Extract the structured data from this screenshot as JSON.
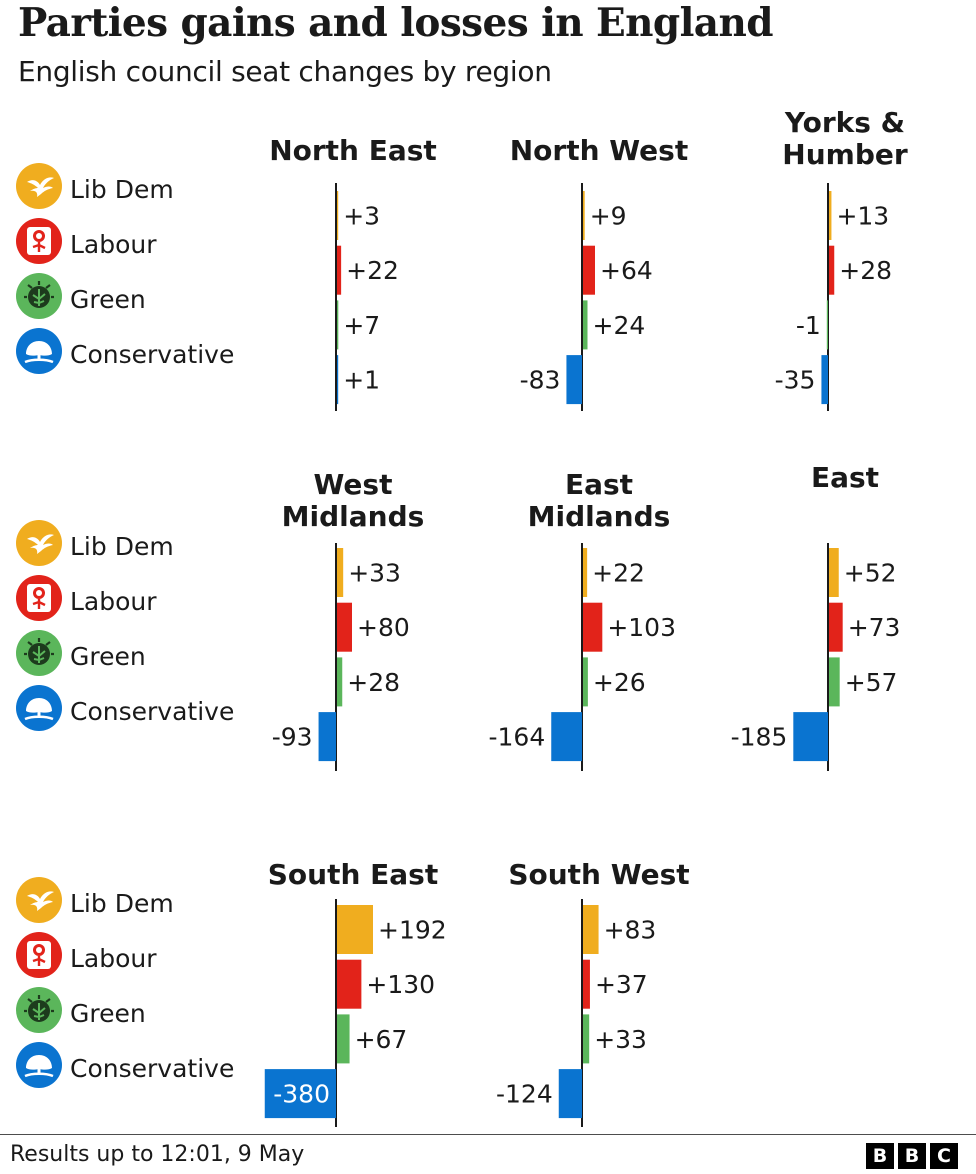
{
  "title": "Parties gains and losses in England",
  "subtitle": "English council seat changes by region",
  "legend": [
    {
      "label": "Lib Dem",
      "color": "#f0ad1f",
      "icon": "lib-dem-bird-icon"
    },
    {
      "label": "Labour",
      "color": "#e2231a",
      "icon": "labour-rose-icon"
    },
    {
      "label": "Green",
      "color": "#5bb65b",
      "icon": "green-earth-tree-icon"
    },
    {
      "label": "Conservative",
      "color": "#0a74d0",
      "icon": "conservative-tree-icon"
    }
  ],
  "chart_data": {
    "type": "bar",
    "orientation": "horizontal",
    "layout": "small-multiples",
    "title": "Parties gains and losses in England",
    "subtitle": "English council seat changes by region",
    "categories": [
      "Lib Dem",
      "Labour",
      "Green",
      "Conservative"
    ],
    "colors": [
      "#f0ad1f",
      "#e2231a",
      "#5bb65b",
      "#0a74d0"
    ],
    "scale": "shared",
    "panels": [
      {
        "region_lines": [
          "North East"
        ],
        "values": [
          3,
          22,
          7,
          1
        ],
        "labels": [
          "+3",
          "+22",
          "+7",
          "+1"
        ]
      },
      {
        "region_lines": [
          "North West"
        ],
        "values": [
          9,
          64,
          24,
          -83
        ],
        "labels": [
          "+9",
          "+64",
          "+24",
          "-83"
        ]
      },
      {
        "region_lines": [
          "Yorks &",
          "Humber"
        ],
        "values": [
          13,
          28,
          -1,
          -35
        ],
        "labels": [
          "+13",
          "+28",
          "-1",
          "-35"
        ]
      },
      {
        "region_lines": [
          "West",
          "Midlands"
        ],
        "values": [
          33,
          80,
          28,
          -93
        ],
        "labels": [
          "+33",
          "+80",
          "+28",
          "-93"
        ]
      },
      {
        "region_lines": [
          "East",
          "Midlands"
        ],
        "values": [
          22,
          103,
          26,
          -164
        ],
        "labels": [
          "+22",
          "+103",
          "+26",
          "-164"
        ]
      },
      {
        "region_lines": [
          "East"
        ],
        "values": [
          52,
          73,
          57,
          -185
        ],
        "labels": [
          "+52",
          "+73",
          "+57",
          "-185"
        ]
      },
      {
        "region_lines": [
          "South East"
        ],
        "values": [
          192,
          130,
          67,
          -380
        ],
        "labels": [
          "+192",
          "+130",
          "+67",
          "-380"
        ]
      },
      {
        "region_lines": [
          "South West"
        ],
        "values": [
          83,
          37,
          33,
          -124
        ],
        "labels": [
          "+83",
          "+37",
          "+33",
          "-124"
        ]
      }
    ]
  },
  "footer": {
    "note": "Results up to 12:01,  9 May",
    "logo_letters": [
      "B",
      "B",
      "C"
    ]
  }
}
